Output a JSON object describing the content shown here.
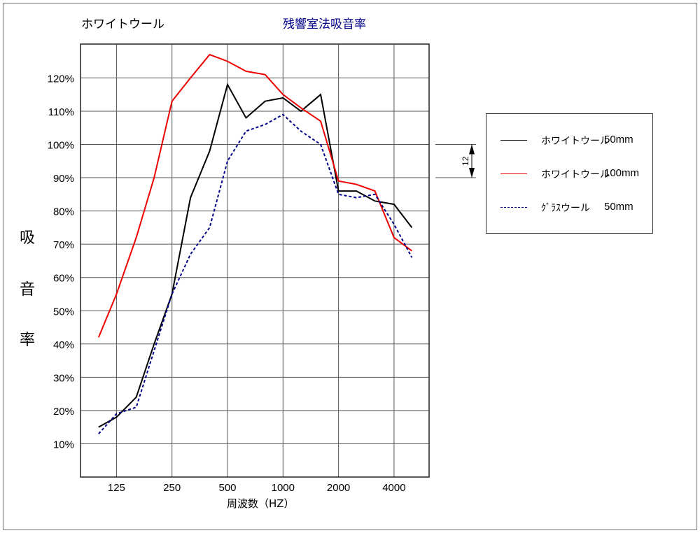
{
  "chart_data": {
    "type": "line",
    "title_left": "ホワイトウール",
    "title": "残響室法吸音率",
    "xlabel": "周波数（HZ）",
    "ylabel": [
      "吸",
      "音",
      "率"
    ],
    "x_scale": "log",
    "x": [
      100,
      125,
      160,
      200,
      250,
      315,
      400,
      500,
      630,
      800,
      1000,
      1250,
      1600,
      2000,
      2500,
      3150,
      4000,
      5000
    ],
    "x_ticks": [
      "125",
      "250",
      "500",
      "1000",
      "2000",
      "4000"
    ],
    "x_tick_values": [
      125,
      250,
      500,
      1000,
      2000,
      4000
    ],
    "y_ticks": [
      "10%",
      "20%",
      "30%",
      "40%",
      "50%",
      "60%",
      "70%",
      "80%",
      "90%",
      "100%",
      "110%",
      "120%"
    ],
    "ylim": [
      0,
      130
    ],
    "grid": true,
    "legend_position": "right",
    "series": [
      {
        "name_a": "ホワイトウール",
        "name_b": "50mm",
        "color": "#000000",
        "style": "solid",
        "values": [
          15,
          18,
          24,
          40,
          55,
          84,
          98,
          118,
          108,
          113,
          114,
          110,
          115,
          86,
          86,
          83,
          82,
          75
        ]
      },
      {
        "name_a": "ホワイトウール",
        "name_b": "100mm",
        "color": "#ee0000",
        "style": "solid",
        "values": [
          42,
          55,
          72,
          90,
          113,
          120,
          127,
          125,
          122,
          121,
          115,
          111,
          107,
          89,
          88,
          86,
          72,
          68
        ]
      },
      {
        "name_a": "ｸﾞﾗｽウール",
        "name_b": "50mm",
        "color": "#000088",
        "style": "dashed",
        "values": [
          13,
          19,
          21,
          38,
          55,
          67,
          75,
          95,
          104,
          106,
          109,
          104,
          100,
          85,
          84,
          85,
          76,
          66
        ]
      }
    ],
    "annotation": "12"
  }
}
